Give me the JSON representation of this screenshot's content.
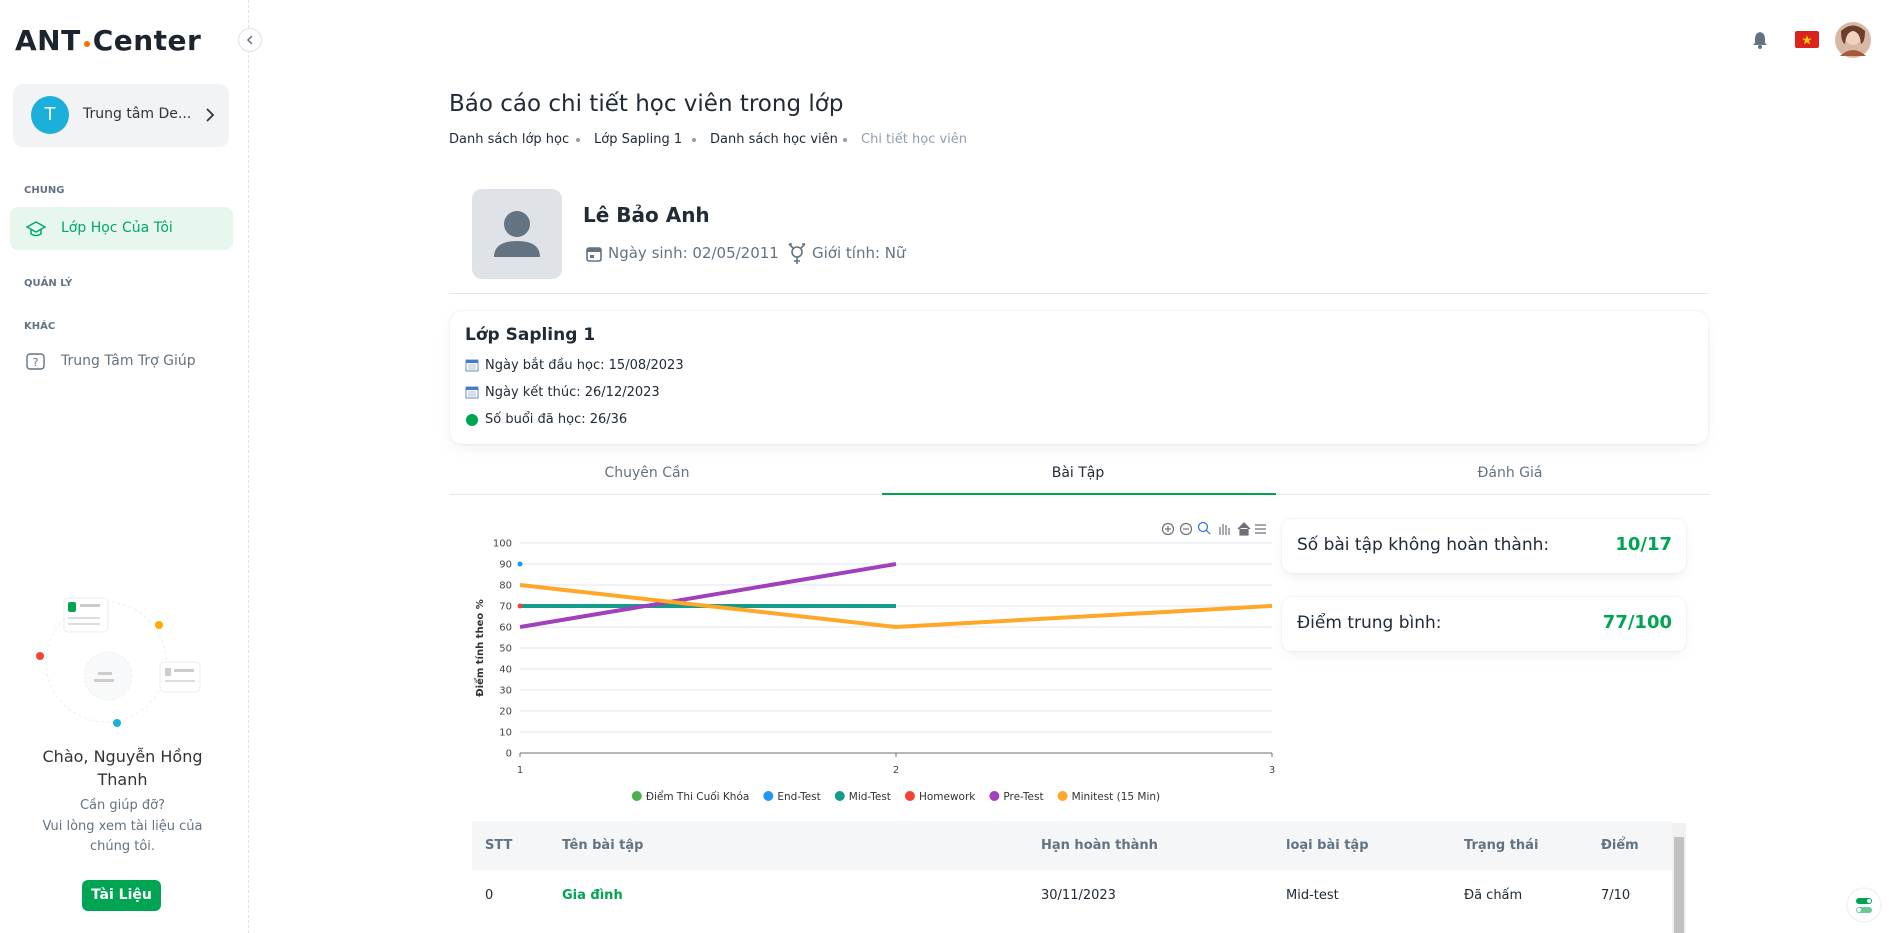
{
  "sidebar": {
    "logo_left": "ANT",
    "logo_right": "Center",
    "org": {
      "initial": "T",
      "name": "Trung tâm De..."
    },
    "sections": [
      {
        "heading": "CHUNG",
        "items": [
          "Lớp Học Của Tôi"
        ]
      },
      {
        "heading": "QUẢN LÝ",
        "items": []
      },
      {
        "heading": "KHÁC",
        "items": [
          "Trung Tâm Trợ Giúp"
        ]
      }
    ],
    "greeting": "Chào, Nguyễn Hồng Thanh",
    "help_title": "Cần giúp đỡ?",
    "help_text": "Vui lòng xem tài liệu của chúng tôi.",
    "help_button": "Tài Liệu"
  },
  "header": {
    "title": "Báo cáo chi tiết học viên trong lớp",
    "breadcrumb": [
      "Danh sách lớp học",
      "Lớp Sapling 1",
      "Danh sách học viên",
      "Chi tiết học viên"
    ]
  },
  "profile": {
    "name": "Lê Bảo Anh",
    "birth": "Ngày sinh: 02/05/2011",
    "gender": "Giới tính: Nữ"
  },
  "class_info": {
    "title": "Lớp Sapling 1",
    "start": "Ngày bắt đầu học: 15/08/2023",
    "end": "Ngày kết thúc: 26/12/2023",
    "sessions": "Số buổi đã học: 26/36"
  },
  "tabs": [
    "Chuyên Cần",
    "Bài Tập",
    "Đánh Giá"
  ],
  "chart_data": {
    "type": "line",
    "y_label": "Điểm tính theo %",
    "x": [
      1,
      2,
      3
    ],
    "xlim": [
      1,
      3
    ],
    "xticks": [
      1,
      2,
      3
    ],
    "ylim": [
      0,
      100
    ],
    "yticks": [
      0,
      10,
      20,
      30,
      40,
      50,
      60,
      70,
      80,
      90,
      100
    ],
    "grid": true,
    "legend": "bottom",
    "series": [
      {
        "name": "Điểm Thi Cuối Khóa",
        "color": "#4caf50",
        "values": [
          null,
          null,
          null
        ]
      },
      {
        "name": "End-Test",
        "color": "#2196f3",
        "values": [
          90,
          null,
          null
        ]
      },
      {
        "name": "Mid-Test",
        "color": "#169c8a",
        "values": [
          70,
          70,
          null
        ]
      },
      {
        "name": "Homework",
        "color": "#f44336",
        "values": [
          70,
          null,
          null
        ]
      },
      {
        "name": "Pre-Test",
        "color": "#a23fbb",
        "values": [
          60,
          90,
          null
        ]
      },
      {
        "name": "Minitest (15 Min)",
        "color": "#ffa726",
        "values": [
          80,
          60,
          70
        ]
      }
    ]
  },
  "stats": [
    {
      "label": "Số bài tập không hoàn thành:",
      "value": "10/17"
    },
    {
      "label": "Điểm trung bình:",
      "value": "77/100"
    }
  ],
  "table": {
    "columns": [
      "STT",
      "Tên bài tập",
      "Hạn hoàn thành",
      "loại bài tập",
      "Trạng thái",
      "Điểm"
    ],
    "rows": [
      [
        "0",
        "Gia đình",
        "30/11/2023",
        "Mid-test",
        "Đã chấm",
        "7/10"
      ]
    ]
  }
}
